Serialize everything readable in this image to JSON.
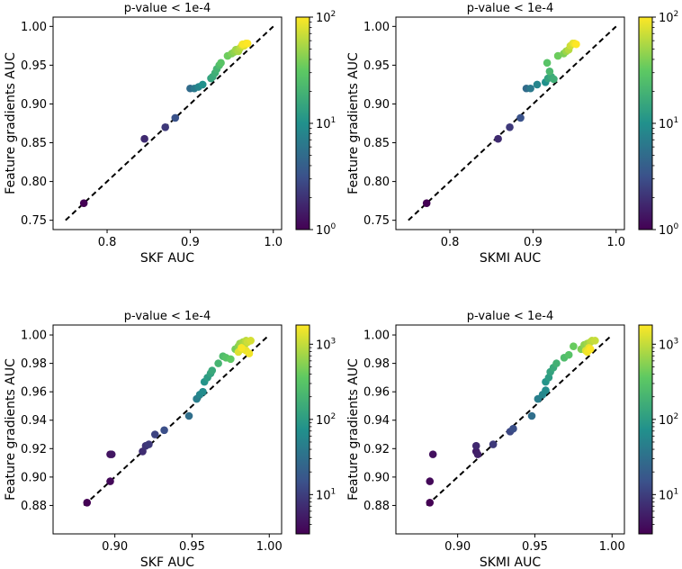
{
  "colormap": {
    "name": "viridis",
    "stops": [
      "#440154",
      "#3b528b",
      "#21918c",
      "#5ec962",
      "#fde725"
    ]
  },
  "chart_data": [
    {
      "type": "scatter",
      "title": "p-value < 1e-4",
      "xlabel": "SKF AUC",
      "ylabel": "Feature gradients AUC",
      "xlim": [
        0.735,
        1.01
      ],
      "ylim": [
        0.738,
        1.012
      ],
      "xticks": [
        {
          "v": 0.8,
          "label": "0.8"
        },
        {
          "v": 0.9,
          "label": "0.9"
        },
        {
          "v": 1.0,
          "label": "1.0"
        }
      ],
      "yticks": [
        {
          "v": 0.75,
          "label": "0.75"
        },
        {
          "v": 0.8,
          "label": "0.80"
        },
        {
          "v": 0.85,
          "label": "0.85"
        },
        {
          "v": 0.9,
          "label": "0.90"
        },
        {
          "v": 0.95,
          "label": "0.95"
        },
        {
          "v": 1.0,
          "label": "1.00"
        }
      ],
      "reference_line": {
        "from": [
          0.75,
          0.75
        ],
        "to": [
          1.0,
          1.0
        ],
        "style": "dashed"
      },
      "colorbar": {
        "scale": "log",
        "min": 1,
        "max": 100,
        "ticks": [
          {
            "v": 1,
            "base": "10",
            "exp": "0"
          },
          {
            "v": 10,
            "base": "10",
            "exp": "1"
          },
          {
            "v": 100,
            "base": "10",
            "exp": "2"
          }
        ]
      },
      "points": [
        {
          "x": 0.772,
          "y": 0.772,
          "c": 1.0
        },
        {
          "x": 0.845,
          "y": 0.855,
          "c": 1.8
        },
        {
          "x": 0.87,
          "y": 0.87,
          "c": 2.2
        },
        {
          "x": 0.882,
          "y": 0.882,
          "c": 3.2
        },
        {
          "x": 0.9,
          "y": 0.92,
          "c": 5.0
        },
        {
          "x": 0.905,
          "y": 0.92,
          "c": 6.5
        },
        {
          "x": 0.91,
          "y": 0.922,
          "c": 8.0
        },
        {
          "x": 0.915,
          "y": 0.925,
          "c": 10.0
        },
        {
          "x": 0.925,
          "y": 0.933,
          "c": 14.0
        },
        {
          "x": 0.927,
          "y": 0.935,
          "c": 16.0
        },
        {
          "x": 0.93,
          "y": 0.94,
          "c": 18.0
        },
        {
          "x": 0.932,
          "y": 0.945,
          "c": 20.0
        },
        {
          "x": 0.935,
          "y": 0.95,
          "c": 24.0
        },
        {
          "x": 0.937,
          "y": 0.953,
          "c": 28.0
        },
        {
          "x": 0.945,
          "y": 0.962,
          "c": 35.0
        },
        {
          "x": 0.95,
          "y": 0.965,
          "c": 40.0
        },
        {
          "x": 0.953,
          "y": 0.967,
          "c": 45.0
        },
        {
          "x": 0.955,
          "y": 0.97,
          "c": 50.0
        },
        {
          "x": 0.958,
          "y": 0.968,
          "c": 55.0
        },
        {
          "x": 0.96,
          "y": 0.972,
          "c": 60.0
        },
        {
          "x": 0.962,
          "y": 0.975,
          "c": 70.0
        },
        {
          "x": 0.965,
          "y": 0.975,
          "c": 80.0
        },
        {
          "x": 0.967,
          "y": 0.978,
          "c": 90.0
        },
        {
          "x": 0.969,
          "y": 0.978,
          "c": 100.0
        },
        {
          "x": 0.963,
          "y": 0.977,
          "c": 95.0
        }
      ]
    },
    {
      "type": "scatter",
      "title": "p-value < 1e-4",
      "xlabel": "SKMI AUC",
      "ylabel": "Feature gradients AUC",
      "xlim": [
        0.735,
        1.01
      ],
      "ylim": [
        0.738,
        1.012
      ],
      "xticks": [
        {
          "v": 0.8,
          "label": "0.8"
        },
        {
          "v": 0.9,
          "label": "0.9"
        },
        {
          "v": 1.0,
          "label": "1.0"
        }
      ],
      "yticks": [
        {
          "v": 0.75,
          "label": "0.75"
        },
        {
          "v": 0.8,
          "label": "0.80"
        },
        {
          "v": 0.85,
          "label": "0.85"
        },
        {
          "v": 0.9,
          "label": "0.90"
        },
        {
          "v": 0.95,
          "label": "0.95"
        },
        {
          "v": 1.0,
          "label": "1.00"
        }
      ],
      "reference_line": {
        "from": [
          0.75,
          0.75
        ],
        "to": [
          1.0,
          1.0
        ],
        "style": "dashed"
      },
      "colorbar": {
        "scale": "log",
        "min": 1,
        "max": 100,
        "ticks": [
          {
            "v": 1,
            "base": "10",
            "exp": "0"
          },
          {
            "v": 10,
            "base": "10",
            "exp": "1"
          },
          {
            "v": 100,
            "base": "10",
            "exp": "2"
          }
        ]
      },
      "points": [
        {
          "x": 0.772,
          "y": 0.772,
          "c": 1.0
        },
        {
          "x": 0.858,
          "y": 0.855,
          "c": 1.8
        },
        {
          "x": 0.872,
          "y": 0.87,
          "c": 2.2
        },
        {
          "x": 0.885,
          "y": 0.882,
          "c": 3.2
        },
        {
          "x": 0.892,
          "y": 0.92,
          "c": 5.0
        },
        {
          "x": 0.897,
          "y": 0.92,
          "c": 6.5
        },
        {
          "x": 0.905,
          "y": 0.925,
          "c": 8.0
        },
        {
          "x": 0.915,
          "y": 0.928,
          "c": 10.0
        },
        {
          "x": 0.918,
          "y": 0.933,
          "c": 14.0
        },
        {
          "x": 0.922,
          "y": 0.935,
          "c": 16.0
        },
        {
          "x": 0.925,
          "y": 0.932,
          "c": 18.0
        },
        {
          "x": 0.92,
          "y": 0.942,
          "c": 22.0
        },
        {
          "x": 0.917,
          "y": 0.953,
          "c": 28.0
        },
        {
          "x": 0.93,
          "y": 0.962,
          "c": 35.0
        },
        {
          "x": 0.937,
          "y": 0.965,
          "c": 40.0
        },
        {
          "x": 0.94,
          "y": 0.968,
          "c": 50.0
        },
        {
          "x": 0.943,
          "y": 0.97,
          "c": 60.0
        },
        {
          "x": 0.945,
          "y": 0.975,
          "c": 70.0
        },
        {
          "x": 0.948,
          "y": 0.978,
          "c": 80.0
        },
        {
          "x": 0.95,
          "y": 0.978,
          "c": 90.0
        },
        {
          "x": 0.952,
          "y": 0.977,
          "c": 100.0
        }
      ]
    },
    {
      "type": "scatter",
      "title": "p-value < 1e-4",
      "xlabel": "SKF AUC",
      "ylabel": "Feature gradients AUC",
      "xlim": [
        0.86,
        1.008
      ],
      "ylim": [
        0.86,
        1.007
      ],
      "xticks": [
        {
          "v": 0.9,
          "label": "0.90"
        },
        {
          "v": 0.95,
          "label": "0.95"
        },
        {
          "v": 1.0,
          "label": "1.00"
        }
      ],
      "yticks": [
        {
          "v": 0.88,
          "label": "0.88"
        },
        {
          "v": 0.9,
          "label": "0.90"
        },
        {
          "v": 0.92,
          "label": "0.92"
        },
        {
          "v": 0.94,
          "label": "0.94"
        },
        {
          "v": 0.96,
          "label": "0.96"
        },
        {
          "v": 0.98,
          "label": "0.98"
        },
        {
          "v": 1.0,
          "label": "1.00"
        }
      ],
      "reference_line": {
        "from": [
          0.88,
          0.88
        ],
        "to": [
          1.0,
          1.0
        ],
        "style": "dashed"
      },
      "colorbar": {
        "scale": "log",
        "min": 3,
        "max": 1800,
        "ticks": [
          {
            "v": 10,
            "base": "10",
            "exp": "1"
          },
          {
            "v": 100,
            "base": "10",
            "exp": "2"
          },
          {
            "v": 1000,
            "base": "10",
            "exp": "3"
          }
        ]
      },
      "points": [
        {
          "x": 0.882,
          "y": 0.882,
          "c": 3.0
        },
        {
          "x": 0.897,
          "y": 0.897,
          "c": 3.5
        },
        {
          "x": 0.897,
          "y": 0.916,
          "c": 4.0
        },
        {
          "x": 0.898,
          "y": 0.916,
          "c": 4.5
        },
        {
          "x": 0.918,
          "y": 0.918,
          "c": 7.0
        },
        {
          "x": 0.92,
          "y": 0.922,
          "c": 8.0
        },
        {
          "x": 0.922,
          "y": 0.923,
          "c": 9.0
        },
        {
          "x": 0.926,
          "y": 0.93,
          "c": 11.0
        },
        {
          "x": 0.932,
          "y": 0.933,
          "c": 14.0
        },
        {
          "x": 0.948,
          "y": 0.943,
          "c": 30.0
        },
        {
          "x": 0.953,
          "y": 0.955,
          "c": 45.0
        },
        {
          "x": 0.955,
          "y": 0.958,
          "c": 55.0
        },
        {
          "x": 0.957,
          "y": 0.96,
          "c": 65.0
        },
        {
          "x": 0.958,
          "y": 0.967,
          "c": 80.0
        },
        {
          "x": 0.96,
          "y": 0.97,
          "c": 100.0
        },
        {
          "x": 0.962,
          "y": 0.973,
          "c": 120.0
        },
        {
          "x": 0.963,
          "y": 0.975,
          "c": 140.0
        },
        {
          "x": 0.967,
          "y": 0.98,
          "c": 200.0
        },
        {
          "x": 0.97,
          "y": 0.985,
          "c": 250.0
        },
        {
          "x": 0.972,
          "y": 0.984,
          "c": 300.0
        },
        {
          "x": 0.975,
          "y": 0.983,
          "c": 350.0
        },
        {
          "x": 0.978,
          "y": 0.99,
          "c": 450.0
        },
        {
          "x": 0.98,
          "y": 0.992,
          "c": 550.0
        },
        {
          "x": 0.981,
          "y": 0.994,
          "c": 650.0
        },
        {
          "x": 0.983,
          "y": 0.995,
          "c": 750.0
        },
        {
          "x": 0.984,
          "y": 0.993,
          "c": 850.0
        },
        {
          "x": 0.985,
          "y": 0.996,
          "c": 950.0
        },
        {
          "x": 0.986,
          "y": 0.995,
          "c": 1100.0
        },
        {
          "x": 0.988,
          "y": 0.996,
          "c": 1200.0
        },
        {
          "x": 0.98,
          "y": 0.988,
          "c": 1300.0
        },
        {
          "x": 0.983,
          "y": 0.99,
          "c": 1400.0
        },
        {
          "x": 0.985,
          "y": 0.989,
          "c": 1500.0
        },
        {
          "x": 0.987,
          "y": 0.987,
          "c": 1600.0
        },
        {
          "x": 0.982,
          "y": 0.991,
          "c": 1700.0
        }
      ]
    },
    {
      "type": "scatter",
      "title": "p-value < 1e-4",
      "xlabel": "SKMI AUC",
      "ylabel": "Feature gradients AUC",
      "xlim": [
        0.86,
        1.008
      ],
      "ylim": [
        0.86,
        1.007
      ],
      "xticks": [
        {
          "v": 0.9,
          "label": "0.90"
        },
        {
          "v": 0.95,
          "label": "0.95"
        },
        {
          "v": 1.0,
          "label": "1.00"
        }
      ],
      "yticks": [
        {
          "v": 0.88,
          "label": "0.88"
        },
        {
          "v": 0.9,
          "label": "0.90"
        },
        {
          "v": 0.92,
          "label": "0.92"
        },
        {
          "v": 0.94,
          "label": "0.94"
        },
        {
          "v": 0.96,
          "label": "0.96"
        },
        {
          "v": 0.98,
          "label": "0.98"
        },
        {
          "v": 1.0,
          "label": "1.00"
        }
      ],
      "reference_line": {
        "from": [
          0.88,
          0.88
        ],
        "to": [
          1.0,
          1.0
        ],
        "style": "dashed"
      },
      "colorbar": {
        "scale": "log",
        "min": 3,
        "max": 1800,
        "ticks": [
          {
            "v": 10,
            "base": "10",
            "exp": "1"
          },
          {
            "v": 100,
            "base": "10",
            "exp": "2"
          },
          {
            "v": 1000,
            "base": "10",
            "exp": "3"
          }
        ]
      },
      "points": [
        {
          "x": 0.882,
          "y": 0.882,
          "c": 3.0
        },
        {
          "x": 0.882,
          "y": 0.897,
          "c": 3.5
        },
        {
          "x": 0.884,
          "y": 0.916,
          "c": 4.0
        },
        {
          "x": 0.912,
          "y": 0.918,
          "c": 5.0
        },
        {
          "x": 0.913,
          "y": 0.916,
          "c": 5.5
        },
        {
          "x": 0.912,
          "y": 0.922,
          "c": 6.5
        },
        {
          "x": 0.923,
          "y": 0.923,
          "c": 9.0
        },
        {
          "x": 0.934,
          "y": 0.932,
          "c": 12.0
        },
        {
          "x": 0.936,
          "y": 0.934,
          "c": 14.0
        },
        {
          "x": 0.948,
          "y": 0.943,
          "c": 30.0
        },
        {
          "x": 0.952,
          "y": 0.955,
          "c": 45.0
        },
        {
          "x": 0.955,
          "y": 0.958,
          "c": 55.0
        },
        {
          "x": 0.957,
          "y": 0.961,
          "c": 65.0
        },
        {
          "x": 0.957,
          "y": 0.967,
          "c": 80.0
        },
        {
          "x": 0.959,
          "y": 0.97,
          "c": 100.0
        },
        {
          "x": 0.96,
          "y": 0.974,
          "c": 120.0
        },
        {
          "x": 0.962,
          "y": 0.977,
          "c": 140.0
        },
        {
          "x": 0.964,
          "y": 0.98,
          "c": 180.0
        },
        {
          "x": 0.969,
          "y": 0.984,
          "c": 250.0
        },
        {
          "x": 0.972,
          "y": 0.986,
          "c": 300.0
        },
        {
          "x": 0.975,
          "y": 0.992,
          "c": 400.0
        },
        {
          "x": 0.98,
          "y": 0.99,
          "c": 500.0
        },
        {
          "x": 0.982,
          "y": 0.993,
          "c": 600.0
        },
        {
          "x": 0.984,
          "y": 0.994,
          "c": 700.0
        },
        {
          "x": 0.986,
          "y": 0.995,
          "c": 850.0
        },
        {
          "x": 0.987,
          "y": 0.996,
          "c": 950.0
        },
        {
          "x": 0.989,
          "y": 0.996,
          "c": 1050.0
        },
        {
          "x": 0.983,
          "y": 0.989,
          "c": 1300.0
        },
        {
          "x": 0.985,
          "y": 0.991,
          "c": 1450.0
        },
        {
          "x": 0.984,
          "y": 0.988,
          "c": 1600.0
        },
        {
          "x": 0.986,
          "y": 0.99,
          "c": 1750.0
        }
      ]
    }
  ]
}
